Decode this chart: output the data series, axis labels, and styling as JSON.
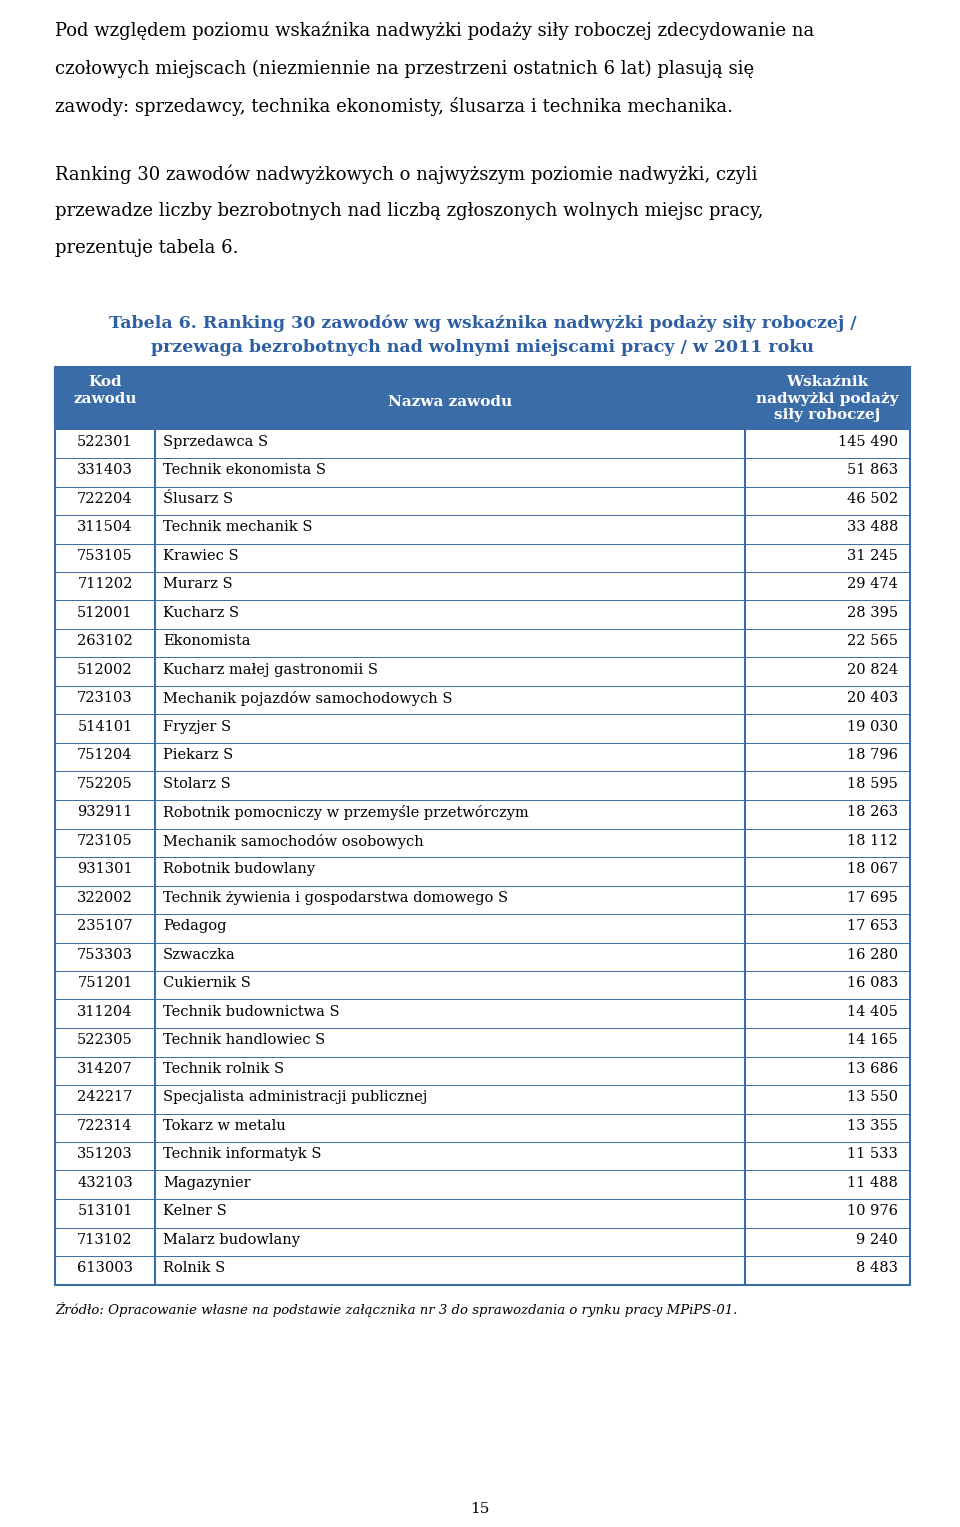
{
  "intro_text": [
    "Pod względem poziomu wskaźnika nadwyżki podaży siły roboczej zdecydowanie na",
    "czołowych miejscach (niezmiennie na przestrzeni ostatnich 6 lat) plasują się",
    "zawody: sprzedawcy, technika ekonomisty, ślusarza i technika mechanika."
  ],
  "body_text": [
    "Ranking 30 zawodów nadwyżkowych o najwyższym poziomie nadwyżki, czyli",
    "przewadze liczby bezrobotnych nad liczbą zgłoszonych wolnych miejsc pracy,",
    "prezentuje tabela 6."
  ],
  "table_title_line1": "Tabela 6. Ranking 30 zawodów wg wskaźnika nadwyżki podaży siły roboczej /",
  "table_title_line2": "przewaga bezrobotnych nad wolnymi miejscami pracy / w 2011 roku",
  "header_col1": "Kod\nzawodu",
  "header_col2": "Nazwa zawodu",
  "header_col3": "Wskaźnik\nnadwyżki podaży\nsiły roboczej",
  "header_bg": "#3a6ca8",
  "header_fg": "#ffffff",
  "col_border": "#3a6ca8",
  "rows": [
    [
      "522301",
      "Sprzedawca S",
      "145 490"
    ],
    [
      "331403",
      "Technik ekonomista S",
      "51 863"
    ],
    [
      "722204",
      "Ślusarz S",
      "46 502"
    ],
    [
      "311504",
      "Technik mechanik S",
      "33 488"
    ],
    [
      "753105",
      "Krawiec S",
      "31 245"
    ],
    [
      "711202",
      "Murarz S",
      "29 474"
    ],
    [
      "512001",
      "Kucharz S",
      "28 395"
    ],
    [
      "263102",
      "Ekonomista",
      "22 565"
    ],
    [
      "512002",
      "Kucharz małej gastronomii S",
      "20 824"
    ],
    [
      "723103",
      "Mechanik pojazdów samochodowych S",
      "20 403"
    ],
    [
      "514101",
      "Fryzjer S",
      "19 030"
    ],
    [
      "751204",
      "Piekarz S",
      "18 796"
    ],
    [
      "752205",
      "Stolarz S",
      "18 595"
    ],
    [
      "932911",
      "Robotnik pomocniczy w przemyśle przetwórczym",
      "18 263"
    ],
    [
      "723105",
      "Mechanik samochodów osobowych",
      "18 112"
    ],
    [
      "931301",
      "Robotnik budowlany",
      "18 067"
    ],
    [
      "322002",
      "Technik żywienia i gospodarstwa domowego S",
      "17 695"
    ],
    [
      "235107",
      "Pedagog",
      "17 653"
    ],
    [
      "753303",
      "Szwaczka",
      "16 280"
    ],
    [
      "751201",
      "Cukiernik S",
      "16 083"
    ],
    [
      "311204",
      "Technik budownictwa S",
      "14 405"
    ],
    [
      "522305",
      "Technik handlowiec S",
      "14 165"
    ],
    [
      "314207",
      "Technik rolnik S",
      "13 686"
    ],
    [
      "242217",
      "Specjalista administracji publicznej",
      "13 550"
    ],
    [
      "722314",
      "Tokarz w metalu",
      "13 355"
    ],
    [
      "351203",
      "Technik informatyk S",
      "11 533"
    ],
    [
      "432103",
      "Magazynier",
      "11 488"
    ],
    [
      "513101",
      "Kelner S",
      "10 976"
    ],
    [
      "713102",
      "Malarz budowlany",
      "9 240"
    ],
    [
      "613003",
      "Rolnik S",
      "8 483"
    ]
  ],
  "footnote": "Źródło: Opracowanie własne na podstawie załącznika nr 3 do sprawozdania o rynku pracy MPiPS-01.",
  "page_number": "15",
  "title_color": "#2e5fa3",
  "body_fontsize": 13,
  "table_fontsize": 10.5,
  "header_fontsize": 11
}
